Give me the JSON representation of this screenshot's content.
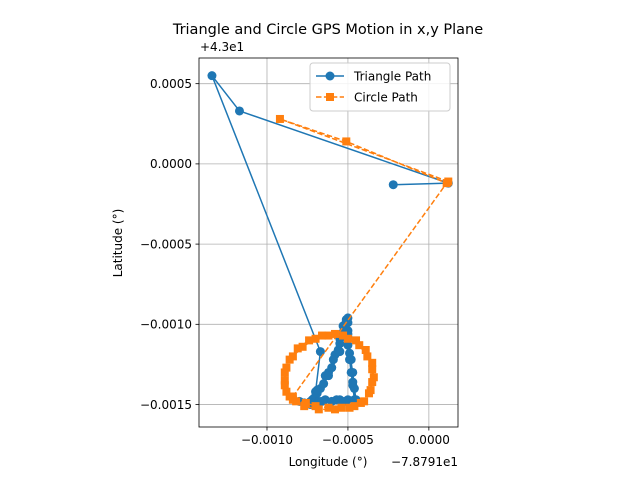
{
  "chart_data": {
    "type": "line",
    "title": "Triangle and Circle GPS Motion in x,y Plane",
    "xlabel": "Longitude (°)",
    "ylabel": "Latitude (°)",
    "x_offset_label": "−7.8791e1",
    "y_offset_label": "+4.3e1",
    "xlim": [
      -0.00142,
      0.00018
    ],
    "ylim": [
      -0.00164,
      0.00066
    ],
    "x_ticks": [
      {
        "value": -0.001,
        "label": "−0.0010"
      },
      {
        "value": -0.0005,
        "label": "−0.0005"
      },
      {
        "value": 0.0,
        "label": "0.0000"
      }
    ],
    "y_ticks": [
      {
        "value": 0.0005,
        "label": "0.0005"
      },
      {
        "value": 0.0,
        "label": "0.0000"
      },
      {
        "value": -0.0005,
        "label": "−0.0005"
      },
      {
        "value": -0.001,
        "label": "−0.0010"
      },
      {
        "value": -0.0015,
        "label": "−0.0015"
      }
    ],
    "grid": true,
    "legend_position": "top-right",
    "series": [
      {
        "name": "Triangle Path",
        "color": "#1f77b4",
        "marker": "circle",
        "linestyle": "solid",
        "points": [
          [
            -0.00022,
            -0.00013
          ],
          [
            0.00012,
            -0.00012
          ],
          [
            -0.00117,
            0.00033
          ],
          [
            -0.00134,
            0.00055
          ],
          [
            -0.00067,
            -0.00117
          ],
          [
            -0.0007,
            -0.00142
          ],
          [
            -0.00073,
            -0.00148
          ],
          [
            -0.00077,
            -0.00149
          ],
          [
            -0.0008,
            -0.00148
          ],
          [
            -0.00072,
            -0.00147
          ],
          [
            -0.00064,
            -0.00147
          ],
          [
            -0.00057,
            -0.00147
          ],
          [
            -0.0005,
            -0.00147
          ],
          [
            -0.00046,
            -0.00147
          ],
          [
            -0.00047,
            -0.00138
          ],
          [
            -0.00048,
            -0.0013
          ],
          [
            -0.00049,
            -0.00122
          ],
          [
            -0.0005,
            -0.00113
          ],
          [
            -0.0005,
            -0.00104
          ],
          [
            -0.00051,
            -0.00098
          ],
          [
            -0.00053,
            -0.00101
          ],
          [
            -0.00055,
            -0.00109
          ],
          [
            -0.00058,
            -0.00119
          ],
          [
            -0.00062,
            -0.0013
          ],
          [
            -0.00067,
            -0.0014
          ],
          [
            -0.00071,
            -0.00146
          ],
          [
            -0.00073,
            -0.0015
          ],
          [
            -0.00069,
            -0.00143
          ],
          [
            -0.00065,
            -0.00137
          ],
          [
            -0.0006,
            -0.00127
          ],
          [
            -0.00056,
            -0.00116
          ],
          [
            -0.00053,
            -0.00105
          ],
          [
            -0.00051,
            -0.00097
          ],
          [
            -0.0005,
            -0.00106
          ],
          [
            -0.00049,
            -0.00118
          ],
          [
            -0.00047,
            -0.0013
          ],
          [
            -0.00046,
            -0.0014
          ],
          [
            -0.00045,
            -0.00147
          ],
          [
            -0.00052,
            -0.00148
          ],
          [
            -0.0006,
            -0.00148
          ],
          [
            -0.00068,
            -0.00148
          ],
          [
            -0.00074,
            -0.00149
          ],
          [
            -0.00069,
            -0.00141
          ],
          [
            -0.00064,
            -0.00132
          ],
          [
            -0.00059,
            -0.00122
          ],
          [
            -0.00055,
            -0.00112
          ],
          [
            -0.00052,
            -0.00101
          ],
          [
            -0.0005,
            -0.00096
          ],
          [
            -0.0005,
            -0.00108
          ],
          [
            -0.00048,
            -0.00122
          ],
          [
            -0.00047,
            -0.00136
          ],
          [
            -0.00046,
            -0.00148
          ],
          [
            -0.00055,
            -0.00147
          ],
          [
            -0.00066,
            -0.00148
          ],
          [
            -0.00072,
            -0.00149
          ],
          [
            -0.00062,
            -0.00132
          ],
          [
            -0.00055,
            -0.00117
          ],
          [
            -0.0005,
            -0.00099
          ]
        ]
      },
      {
        "name": "Circle Path",
        "color": "#ff7f0e",
        "marker": "square",
        "linestyle": "dashed",
        "points": [
          [
            0.00012,
            -0.00011
          ],
          [
            -0.00092,
            0.00028
          ],
          [
            -0.00051,
            0.00014
          ],
          [
            0.00011,
            -0.00012
          ],
          [
            -0.00084,
            -0.00145
          ],
          [
            -0.00082,
            -0.00148
          ],
          [
            -0.00076,
            -0.00149
          ],
          [
            -0.0007,
            -0.00151
          ],
          [
            -0.00062,
            -0.00152
          ],
          [
            -0.00054,
            -0.00152
          ],
          [
            -0.00046,
            -0.00151
          ],
          [
            -0.0004,
            -0.00148
          ],
          [
            -0.00036,
            -0.00141
          ],
          [
            -0.00034,
            -0.00133
          ],
          [
            -0.00035,
            -0.00124
          ],
          [
            -0.00039,
            -0.00116
          ],
          [
            -0.00045,
            -0.0011
          ],
          [
            -0.00053,
            -0.00107
          ],
          [
            -0.00062,
            -0.00107
          ],
          [
            -0.0007,
            -0.00109
          ],
          [
            -0.00078,
            -0.00114
          ],
          [
            -0.00084,
            -0.0012
          ],
          [
            -0.00088,
            -0.00127
          ],
          [
            -0.00089,
            -0.00135
          ],
          [
            -0.00088,
            -0.00142
          ],
          [
            -0.00084,
            -0.00147
          ],
          [
            -0.00077,
            -0.00151
          ],
          [
            -0.00068,
            -0.00153
          ],
          [
            -0.00058,
            -0.00153
          ],
          [
            -0.00049,
            -0.00152
          ],
          [
            -0.00042,
            -0.00149
          ],
          [
            -0.00037,
            -0.00143
          ],
          [
            -0.00035,
            -0.00136
          ],
          [
            -0.00035,
            -0.00128
          ],
          [
            -0.00038,
            -0.0012
          ],
          [
            -0.00043,
            -0.00113
          ],
          [
            -0.0005,
            -0.00109
          ],
          [
            -0.00058,
            -0.00106
          ],
          [
            -0.00066,
            -0.00107
          ],
          [
            -0.00074,
            -0.0011
          ],
          [
            -0.00081,
            -0.00115
          ],
          [
            -0.00086,
            -0.00122
          ],
          [
            -0.00089,
            -0.0013
          ],
          [
            -0.00089,
            -0.00138
          ],
          [
            -0.00086,
            -0.00145
          ]
        ]
      }
    ]
  }
}
